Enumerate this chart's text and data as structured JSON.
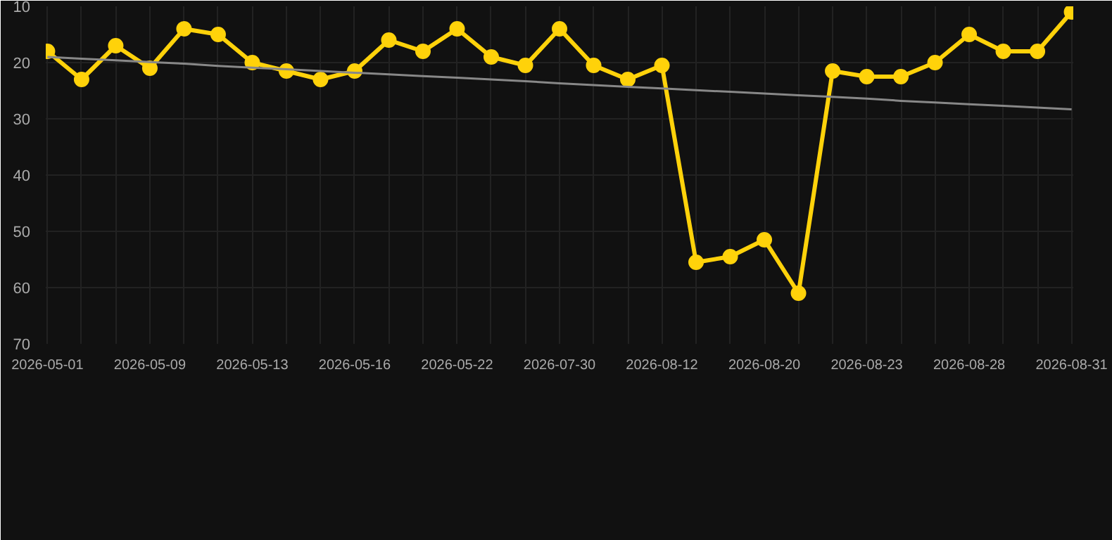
{
  "chart_data": {
    "type": "line",
    "categories": [
      "2026-05-01",
      null,
      null,
      "2026-05-09",
      null,
      null,
      "2026-05-13",
      null,
      null,
      "2026-05-16",
      null,
      null,
      "2026-05-22",
      null,
      null,
      "2026-07-30",
      null,
      null,
      "2026-08-12",
      null,
      null,
      "2026-08-20",
      null,
      null,
      "2026-08-23",
      null,
      null,
      "2026-08-28",
      null,
      null,
      "2026-08-31"
    ],
    "series": [
      {
        "color": "#ffd20a",
        "marker": "circle",
        "values": [
          18,
          23,
          17,
          21,
          14,
          15,
          20,
          21.5,
          23,
          21.5,
          16,
          18,
          14,
          19,
          20.5,
          14,
          20.5,
          23,
          20.5,
          55.5,
          54.5,
          51.5,
          61,
          21.5,
          22.5,
          22.5,
          20,
          15,
          18,
          18,
          11
        ]
      },
      {
        "type": "line",
        "color": "#888888",
        "marker": "none",
        "values": [
          19,
          19.3,
          19.6,
          19.9,
          20.2,
          20.6,
          20.9,
          21.2,
          21.5,
          21.8,
          22.1,
          22.4,
          22.7,
          23,
          23.3,
          23.7,
          24,
          24.3,
          24.6,
          24.9,
          25.2,
          25.5,
          25.8,
          26.1,
          26.4,
          26.8,
          27.1,
          27.4,
          27.7,
          28,
          28.3
        ]
      }
    ],
    "ylim": [
      70,
      10
    ],
    "yticks": [
      10,
      20,
      30,
      40,
      50,
      60,
      70
    ],
    "grid": true
  }
}
